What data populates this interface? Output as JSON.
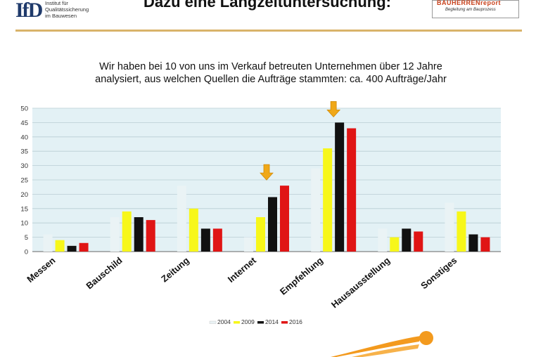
{
  "header": {
    "logo_mark": "IfD",
    "logo_text": "Institut für\nQualitätssicherung\nim Bauwesen",
    "title": "Dazu eine Langzeituntersuchung:",
    "report_logo_main": "BAUHERRENreport",
    "report_logo_sub": "Begleitung am Bauprozess"
  },
  "subtitle": "Wir haben bei 10 von uns im Verkauf  betreuten Unternehmen über 12 Jahre\nanalysiert, aus welchen Quellen die Aufträge stammten: ca. 400 Aufträge/Jahr",
  "chart_data": {
    "type": "bar",
    "title": "",
    "xlabel": "",
    "ylabel": "",
    "ylim": [
      0,
      50
    ],
    "yticks": [
      0,
      5,
      10,
      15,
      20,
      25,
      30,
      35,
      40,
      45,
      50
    ],
    "grid": true,
    "legend": "bottom",
    "categories": [
      "Messen",
      "Bauschild",
      "Zeitung",
      "Internet",
      "Empfehlung",
      "Hausausstellung",
      "Sonstiges"
    ],
    "series": [
      {
        "name": "2004",
        "color": "#eaf3f5",
        "values": [
          6,
          12,
          23,
          5,
          29,
          8,
          17
        ]
      },
      {
        "name": "2009",
        "color": "#f7f71a",
        "values": [
          4,
          14,
          15,
          12,
          36,
          5,
          14
        ]
      },
      {
        "name": "2014",
        "color": "#111111",
        "values": [
          2,
          12,
          8,
          19,
          45,
          8,
          6
        ]
      },
      {
        "name": "2016",
        "color": "#e01515",
        "values": [
          3,
          11,
          8,
          23,
          43,
          7,
          5
        ]
      }
    ],
    "annotations": [
      {
        "type": "down-arrow",
        "category": "Internet",
        "color": "#f0a818"
      },
      {
        "type": "down-arrow",
        "category": "Empfehlung",
        "color": "#f0a818"
      }
    ],
    "plot_background": "#e3f1f5"
  }
}
